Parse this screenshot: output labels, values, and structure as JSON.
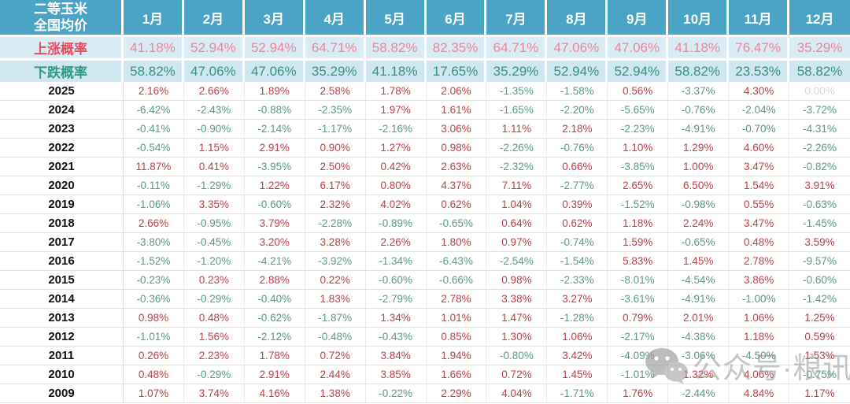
{
  "colors": {
    "header_bg": "#4BA4C6",
    "rise_row_bg": "#D9ECF5",
    "fall_row_bg": "#CFE7F1",
    "rise_label": "#E84C5F",
    "fall_label": "#2E9B86",
    "positive_value": "#C13F44",
    "negative_value": "#5A9A8C",
    "zero_value": "#D8D8D8"
  },
  "watermark": {
    "icon": "wechat-icon",
    "text": "公众号·粮讯社"
  },
  "chart_data": {
    "type": "table",
    "title": "二等玉米全国均价",
    "corner_title_line1": "二等玉米",
    "corner_title_line2": "全国均价",
    "columns": [
      "1月",
      "2月",
      "3月",
      "4月",
      "5月",
      "6月",
      "7月",
      "8月",
      "9月",
      "10月",
      "11月",
      "12月"
    ],
    "rise_probability": {
      "label": "上涨概率",
      "values": [
        "41.18%",
        "52.94%",
        "52.94%",
        "64.71%",
        "58.82%",
        "82.35%",
        "64.71%",
        "47.06%",
        "47.06%",
        "41.18%",
        "76.47%",
        "35.29%"
      ]
    },
    "fall_probability": {
      "label": "下跌概率",
      "values": [
        "58.82%",
        "47.06%",
        "47.06%",
        "35.29%",
        "41.18%",
        "17.65%",
        "35.29%",
        "52.94%",
        "52.94%",
        "58.82%",
        "23.53%",
        "58.82%"
      ]
    },
    "rows": [
      {
        "year": "2025",
        "values": [
          "2.16%",
          "2.66%",
          "1.89%",
          "2.58%",
          "1.78%",
          "2.06%",
          "-1.35%",
          "-1.58%",
          "0.56%",
          "-3.37%",
          "4.30%",
          "0.00%"
        ]
      },
      {
        "year": "2024",
        "values": [
          "-6.42%",
          "-2.43%",
          "-0.88%",
          "-2.35%",
          "1.97%",
          "1.61%",
          "-1.65%",
          "-2.20%",
          "-5.65%",
          "-0.76%",
          "-2.04%",
          "-3.72%"
        ]
      },
      {
        "year": "2023",
        "values": [
          "-0.41%",
          "-0.90%",
          "-2.14%",
          "-1.17%",
          "-2.16%",
          "3.06%",
          "1.11%",
          "2.18%",
          "-2.23%",
          "-4.91%",
          "-0.70%",
          "-4.31%"
        ]
      },
      {
        "year": "2022",
        "values": [
          "-0.54%",
          "1.15%",
          "2.91%",
          "0.90%",
          "1.27%",
          "0.98%",
          "-2.26%",
          "-0.76%",
          "1.10%",
          "1.29%",
          "4.60%",
          "-2.26%"
        ]
      },
      {
        "year": "2021",
        "values": [
          "11.87%",
          "0.41%",
          "-3.95%",
          "2.50%",
          "0.42%",
          "2.63%",
          "-2.32%",
          "0.66%",
          "-3.85%",
          "1.00%",
          "3.47%",
          "-0.82%"
        ]
      },
      {
        "year": "2020",
        "values": [
          "-0.11%",
          "-1.29%",
          "1.22%",
          "6.17%",
          "0.80%",
          "4.37%",
          "7.11%",
          "-2.77%",
          "2.65%",
          "6.50%",
          "1.54%",
          "3.91%"
        ]
      },
      {
        "year": "2019",
        "values": [
          "-1.06%",
          "3.35%",
          "-0.60%",
          "2.32%",
          "4.02%",
          "0.62%",
          "1.04%",
          "0.39%",
          "-1.52%",
          "-0.98%",
          "0.55%",
          "-0.63%"
        ]
      },
      {
        "year": "2018",
        "values": [
          "2.66%",
          "-0.95%",
          "3.79%",
          "-2.28%",
          "-0.89%",
          "-0.65%",
          "0.64%",
          "0.62%",
          "1.18%",
          "2.24%",
          "3.47%",
          "-1.45%"
        ]
      },
      {
        "year": "2017",
        "values": [
          "-3.80%",
          "-0.45%",
          "3.20%",
          "3.28%",
          "2.26%",
          "1.80%",
          "0.97%",
          "-0.74%",
          "1.59%",
          "-0.65%",
          "0.48%",
          "3.59%"
        ]
      },
      {
        "year": "2016",
        "values": [
          "-1.52%",
          "-1.20%",
          "-4.21%",
          "-3.92%",
          "-1.34%",
          "-6.43%",
          "-2.54%",
          "-1.54%",
          "5.83%",
          "1.45%",
          "2.78%",
          "-9.57%"
        ]
      },
      {
        "year": "2015",
        "values": [
          "-0.23%",
          "0.23%",
          "2.88%",
          "0.22%",
          "-0.60%",
          "-0.66%",
          "0.98%",
          "-2.33%",
          "-8.01%",
          "-4.54%",
          "3.86%",
          "-0.60%"
        ]
      },
      {
        "year": "2014",
        "values": [
          "-0.36%",
          "-0.29%",
          "-0.40%",
          "1.83%",
          "-2.79%",
          "2.78%",
          "3.38%",
          "3.27%",
          "-3.61%",
          "-4.91%",
          "-1.00%",
          "-1.42%"
        ]
      },
      {
        "year": "2013",
        "values": [
          "0.98%",
          "0.48%",
          "-0.62%",
          "-1.87%",
          "1.34%",
          "1.01%",
          "1.47%",
          "-1.28%",
          "0.79%",
          "2.01%",
          "1.06%",
          "1.25%"
        ]
      },
      {
        "year": "2012",
        "values": [
          "-1.01%",
          "1.56%",
          "-2.12%",
          "-0.48%",
          "-0.43%",
          "0.85%",
          "1.30%",
          "1.06%",
          "-2.17%",
          "-4.38%",
          "1.18%",
          "0.59%"
        ]
      },
      {
        "year": "2011",
        "values": [
          "0.26%",
          "2.23%",
          "1.78%",
          "0.72%",
          "3.84%",
          "1.94%",
          "-0.80%",
          "3.42%",
          "-4.09%",
          "-3.06%",
          "-4.50%",
          "1.53%"
        ]
      },
      {
        "year": "2010",
        "values": [
          "0.48%",
          "-0.29%",
          "2.91%",
          "2.44%",
          "3.85%",
          "1.66%",
          "0.72%",
          "1.45%",
          "-1.01%",
          "1.32%",
          "4.06%",
          "-0.75%"
        ]
      },
      {
        "year": "2009",
        "values": [
          "1.07%",
          "3.74%",
          "4.16%",
          "1.38%",
          "-0.22%",
          "2.29%",
          "4.04%",
          "-1.71%",
          "1.76%",
          "-2.44%",
          "4.84%",
          "1.17%"
        ]
      }
    ]
  }
}
